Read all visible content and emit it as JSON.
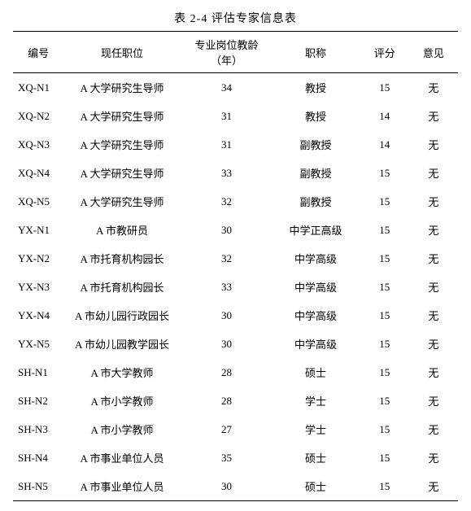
{
  "caption": "表 2-4   评估专家信息表",
  "columns": [
    "编号",
    "现任职位",
    "专业岗位教龄（年）",
    "职称",
    "评分",
    "意见"
  ],
  "rows": [
    {
      "id": "XQ-N1",
      "position": "A 大学研究生导师",
      "years": "34",
      "title": "教授",
      "score": "15",
      "opinion": "无"
    },
    {
      "id": "XQ-N2",
      "position": "A 大学研究生导师",
      "years": "31",
      "title": "教授",
      "score": "14",
      "opinion": "无"
    },
    {
      "id": "XQ-N3",
      "position": "A 大学研究生导师",
      "years": "31",
      "title": "副教授",
      "score": "14",
      "opinion": "无"
    },
    {
      "id": "XQ-N4",
      "position": "A 大学研究生导师",
      "years": "33",
      "title": "副教授",
      "score": "15",
      "opinion": "无"
    },
    {
      "id": "XQ-N5",
      "position": "A 大学研究生导师",
      "years": "32",
      "title": "副教授",
      "score": "15",
      "opinion": "无"
    },
    {
      "id": "YX-N1",
      "position": "A 市教研员",
      "years": "30",
      "title": "中学正高级",
      "score": "15",
      "opinion": "无"
    },
    {
      "id": "YX-N2",
      "position": "A 市托育机构园长",
      "years": "32",
      "title": "中学高级",
      "score": "15",
      "opinion": "无"
    },
    {
      "id": "YX-N3",
      "position": "A 市托育机构园长",
      "years": "33",
      "title": "中学高级",
      "score": "15",
      "opinion": "无"
    },
    {
      "id": "YX-N4",
      "position": "A 市幼儿园行政园长",
      "years": "30",
      "title": "中学高级",
      "score": "15",
      "opinion": "无"
    },
    {
      "id": "YX-N5",
      "position": "A 市幼儿园教学园长",
      "years": "30",
      "title": "中学高级",
      "score": "15",
      "opinion": "无"
    },
    {
      "id": "SH-N1",
      "position": "A 市大学教师",
      "years": "28",
      "title": "硕士",
      "score": "15",
      "opinion": "无"
    },
    {
      "id": "SH-N2",
      "position": "A 市小学教师",
      "years": "28",
      "title": "学士",
      "score": "15",
      "opinion": "无"
    },
    {
      "id": "SH-N3",
      "position": "A 市小学教师",
      "years": "27",
      "title": "学士",
      "score": "15",
      "opinion": "无"
    },
    {
      "id": "SH-N4",
      "position": "A 市事业单位人员",
      "years": "35",
      "title": "硕士",
      "score": "15",
      "opinion": "无"
    },
    {
      "id": "SH-N5",
      "position": "A 市事业单位人员",
      "years": "30",
      "title": "硕士",
      "score": "15",
      "opinion": "无"
    }
  ]
}
